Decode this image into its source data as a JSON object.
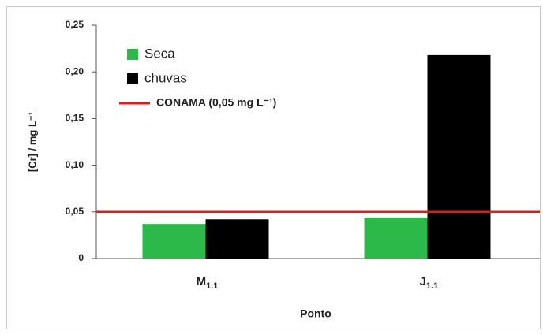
{
  "chart_data": {
    "type": "bar",
    "x_label": "Ponto",
    "y_label": "[Cr] / mg L⁻¹",
    "categories": [
      "M1.1",
      "J1.1"
    ],
    "series": [
      {
        "name": "Seca",
        "color": "#2db84a",
        "values": [
          0.037,
          0.044
        ]
      },
      {
        "name": "chuvas",
        "color": "#000000",
        "values": [
          0.042,
          0.218
        ]
      }
    ],
    "reference_lines": [
      {
        "name": "CONAMA (0,05 mg L⁻¹)",
        "value": 0.05,
        "color": "#e41b1b"
      }
    ],
    "ylim": [
      0,
      0.25
    ],
    "yticks": [
      0,
      {
        "value": 0.05,
        "label": "0,05"
      },
      {
        "value": 0.1,
        "label": "0,10"
      },
      {
        "value": 0.15,
        "label": "0,15"
      },
      {
        "value": 0.2,
        "label": "0,20"
      },
      {
        "value": 0.25,
        "label": "0,25"
      }
    ]
  }
}
